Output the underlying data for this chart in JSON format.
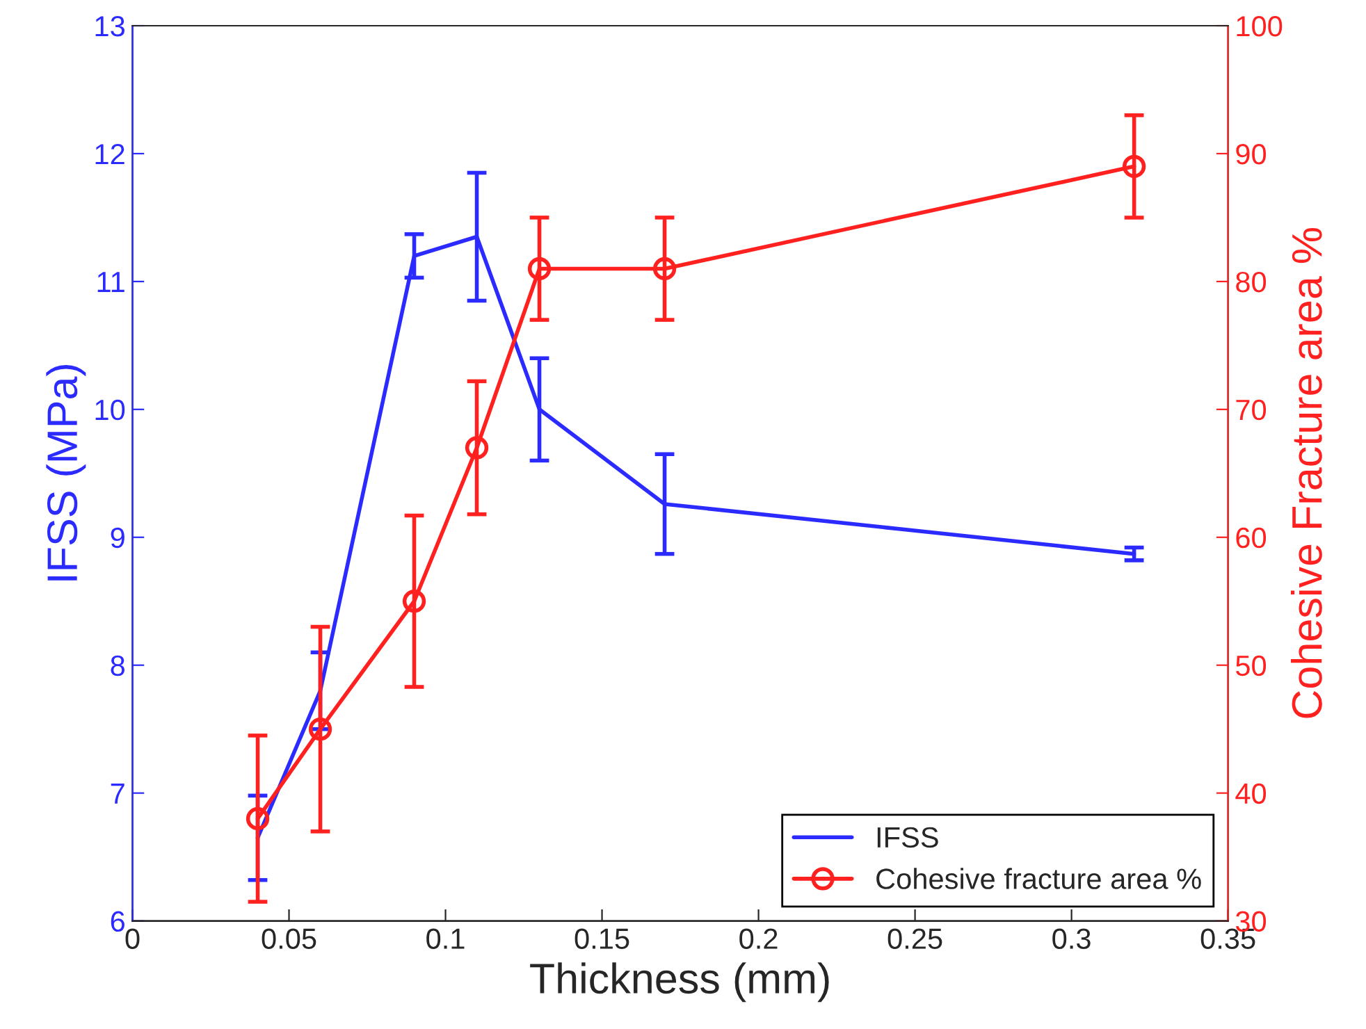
{
  "chart_data": {
    "type": "line",
    "xlabel": "Thickness (mm)",
    "ylabel": "IFSS (MPa)",
    "y2label": "Cohesive Fracture area %",
    "xlim": [
      0,
      0.35
    ],
    "xticks": [
      0,
      0.05,
      0.1,
      0.15,
      0.2,
      0.25,
      0.3,
      0.35
    ],
    "ylim": [
      6,
      13
    ],
    "yticks": [
      6,
      7,
      8,
      9,
      10,
      11,
      12,
      13
    ],
    "y2lim": [
      30,
      100
    ],
    "y2ticks": [
      30,
      40,
      50,
      60,
      70,
      80,
      90,
      100
    ],
    "legend": "bottom right",
    "grid": false,
    "series": [
      {
        "name": "IFSS",
        "color": "#2b2bff",
        "marker": "none",
        "x": [
          0.04,
          0.06,
          0.09,
          0.11,
          0.13,
          0.17,
          0.32
        ],
        "values": [
          6.65,
          7.8,
          11.2,
          11.35,
          10.0,
          9.26,
          8.87
        ],
        "errors": [
          0.33,
          0.3,
          0.17,
          0.5,
          0.4,
          0.39,
          0.05
        ]
      },
      {
        "name": "Cohesive fracture area %",
        "color": "#ff2020",
        "marker": "circle",
        "axis": "y2",
        "x": [
          0.04,
          0.06,
          0.09,
          0.11,
          0.13,
          0.17,
          0.32
        ],
        "values": [
          38,
          45,
          55,
          67,
          81,
          81,
          89
        ],
        "errors": [
          6.5,
          8,
          6.7,
          5.2,
          4,
          4,
          4
        ]
      }
    ]
  }
}
